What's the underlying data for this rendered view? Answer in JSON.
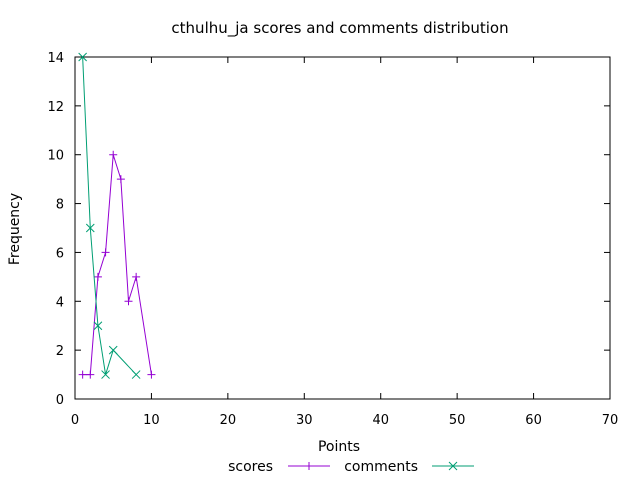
{
  "chart_data": {
    "type": "line",
    "title": "cthulhu_ja scores and comments distribution",
    "xlabel": "Points",
    "ylabel": "Frequency",
    "xlim": [
      0,
      70
    ],
    "ylim": [
      0,
      14
    ],
    "xticks": [
      0,
      10,
      20,
      30,
      40,
      50,
      60,
      70
    ],
    "yticks": [
      0,
      2,
      4,
      6,
      8,
      10,
      12,
      14
    ],
    "grid": false,
    "legend_position": "bottom-center",
    "series": [
      {
        "name": "scores",
        "color": "#9400d3",
        "marker": "plus",
        "points": [
          [
            1,
            1
          ],
          [
            2,
            1
          ],
          [
            3,
            5
          ],
          [
            4,
            6
          ],
          [
            5,
            10
          ],
          [
            6,
            9
          ],
          [
            7,
            4
          ],
          [
            8,
            5
          ],
          [
            10,
            1
          ]
        ]
      },
      {
        "name": "comments",
        "color": "#009e73",
        "marker": "cross",
        "points": [
          [
            1,
            14
          ],
          [
            2,
            7
          ],
          [
            3,
            3
          ],
          [
            4,
            1
          ],
          [
            5,
            2
          ],
          [
            8,
            1
          ]
        ]
      }
    ]
  }
}
